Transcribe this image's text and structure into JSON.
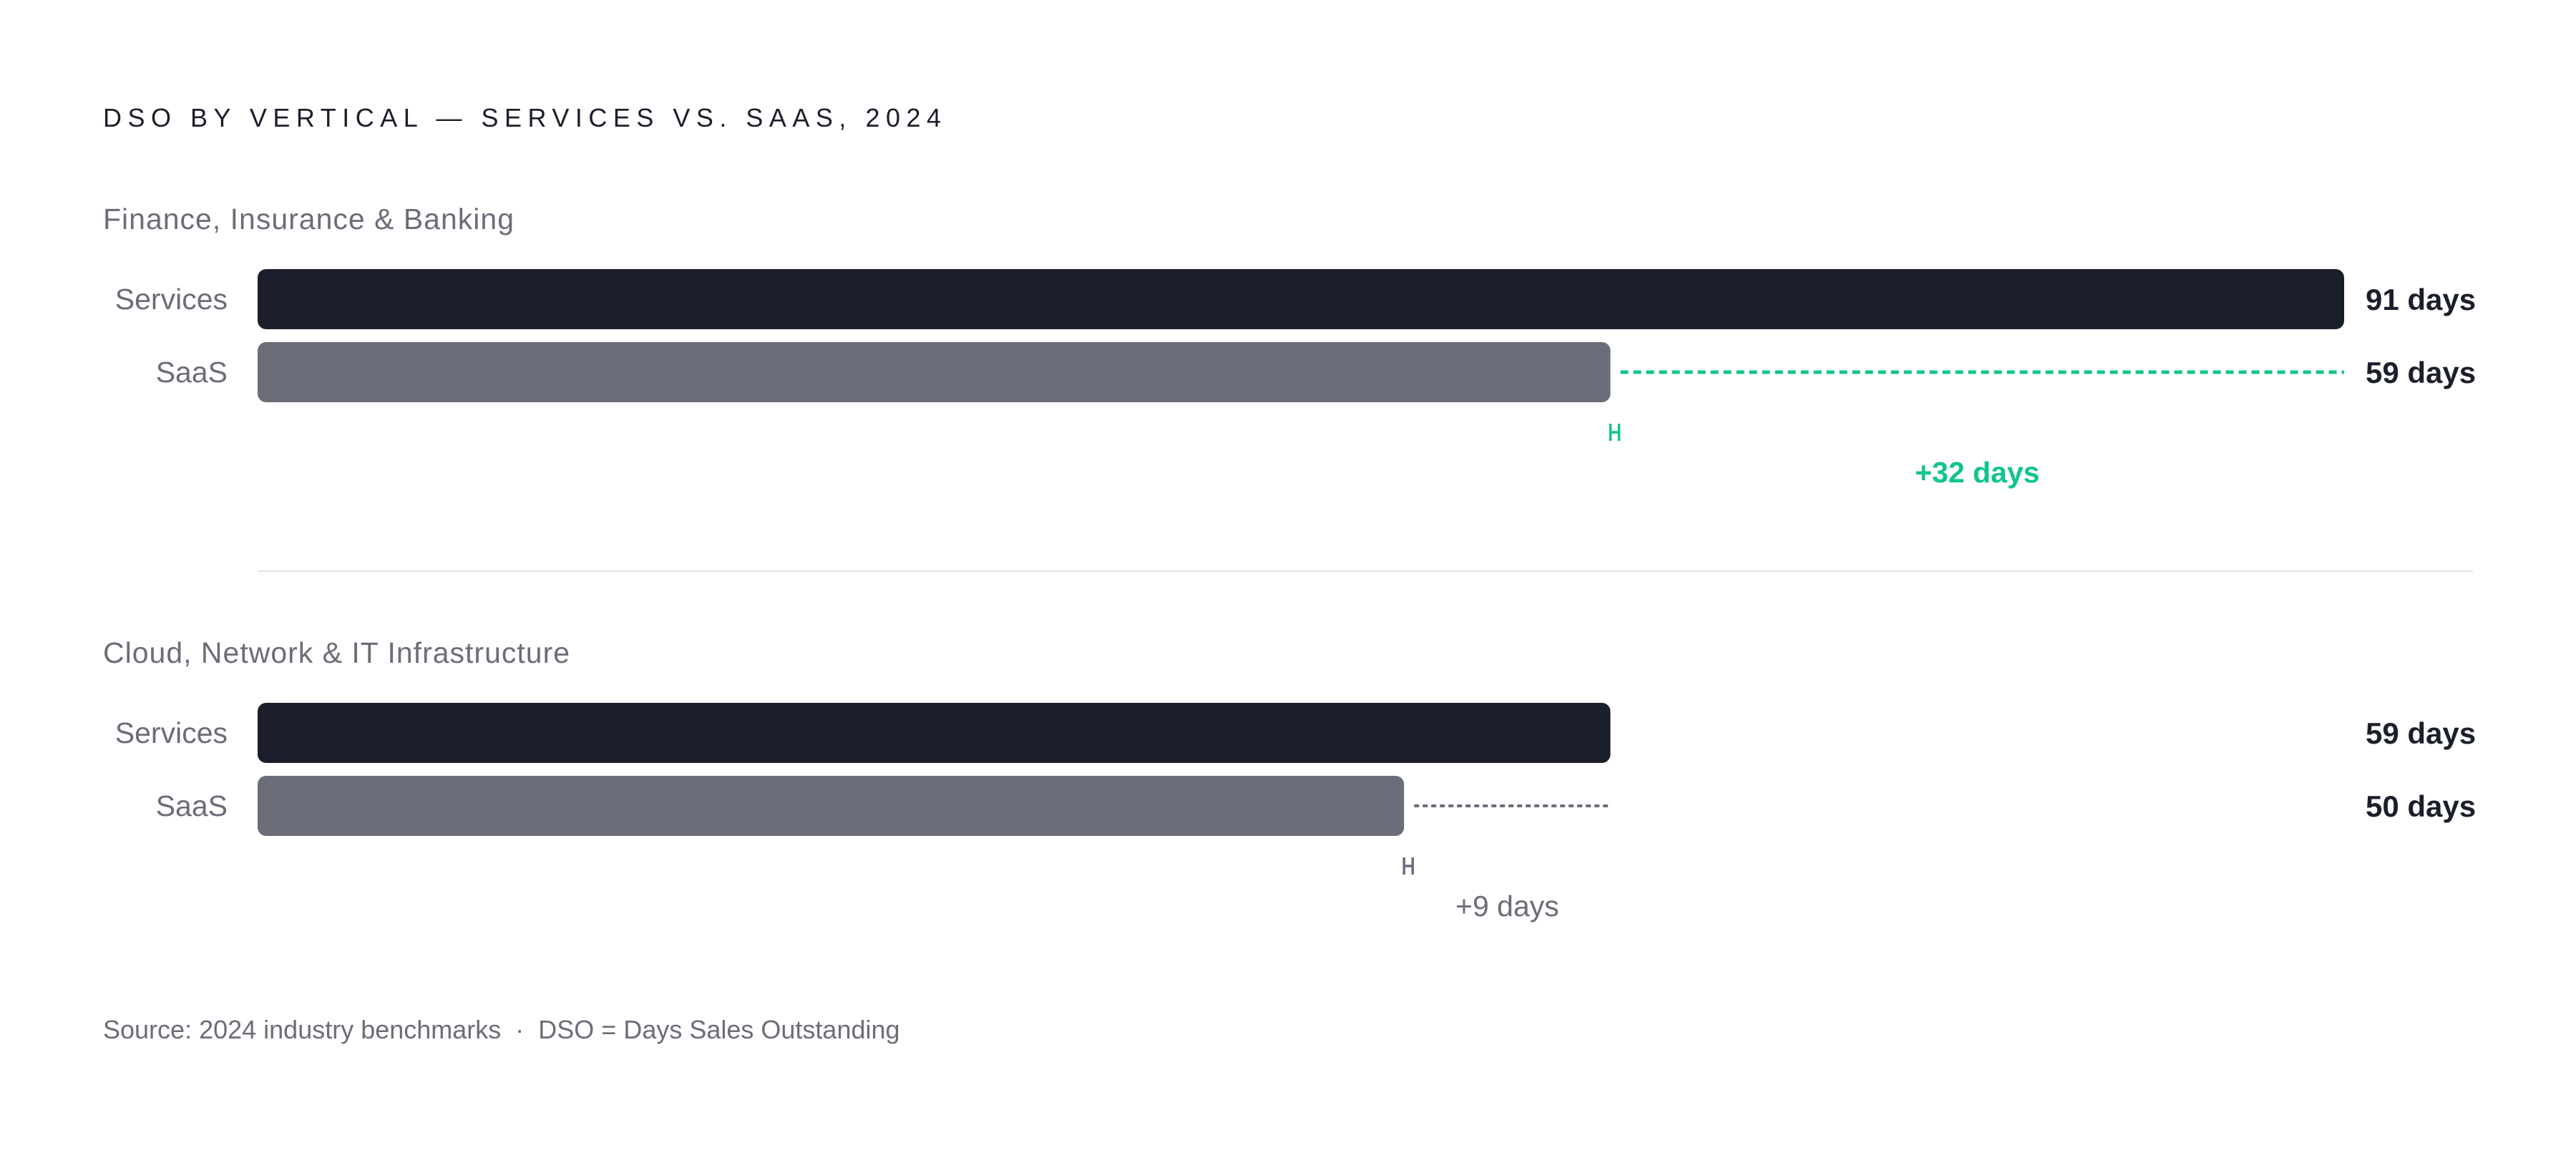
{
  "chart_data": {
    "type": "bar",
    "orientation": "horizontal",
    "title": "DSO BY VERTICAL — SERVICES VS. SAAS, 2024",
    "unit": "days",
    "xlim": [
      0,
      91
    ],
    "grid": false,
    "legend": "none",
    "series_names": [
      "Services",
      "SaaS"
    ],
    "groups": [
      {
        "label": "Finance, Insurance & Banking",
        "rows": [
          {
            "label": "Services",
            "value": 91,
            "value_label": "91 days"
          },
          {
            "label": "SaaS",
            "value": 59,
            "value_label": "59 days"
          }
        ],
        "delta": {
          "value": 32,
          "label": "+32 days",
          "highlight": true
        }
      },
      {
        "label": "Cloud, Network & IT Infrastructure",
        "rows": [
          {
            "label": "Services",
            "value": 59,
            "value_label": "59 days"
          },
          {
            "label": "SaaS",
            "value": 50,
            "value_label": "50 days"
          }
        ],
        "delta": {
          "value": 9,
          "label": "+9 days",
          "highlight": false
        }
      }
    ],
    "source": "Source: 2024 industry benchmarks  ·  DSO = Days Sales Outstanding"
  },
  "colors": {
    "services": "#1b1f2b",
    "saas": "#6b6d78",
    "highlight": "#10c48e",
    "muted": "#6b6d78",
    "title": "#1b1f2b",
    "divider": "#e6e8ec"
  }
}
